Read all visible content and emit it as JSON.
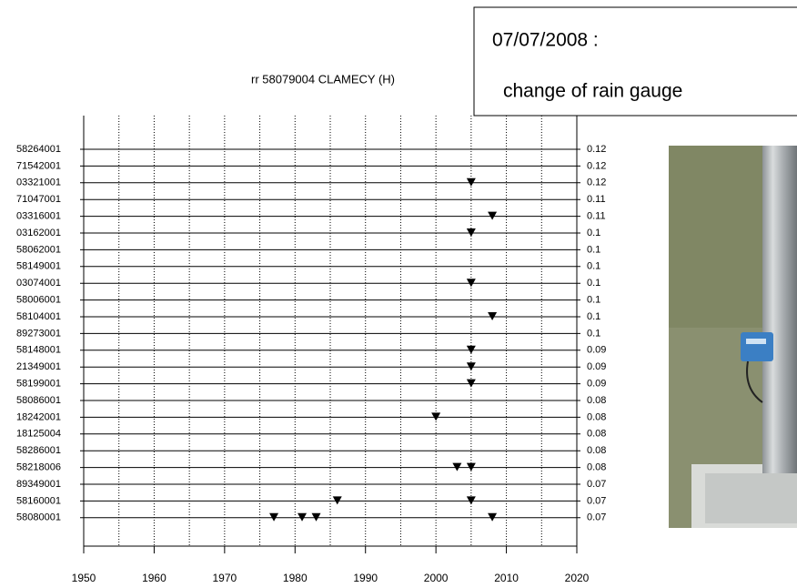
{
  "chart_data": {
    "type": "event-timeline",
    "title": "rr 58079004 CLAMECY (H)",
    "categories": [
      "58264001",
      "71542001",
      "03321001",
      "71047001",
      "03316001",
      "03162001",
      "58062001",
      "58149001",
      "03074001",
      "58006001",
      "58104001",
      "89273001",
      "58148001",
      "21349001",
      "58199001",
      "58086001",
      "18242001",
      "18125004",
      "58286001",
      "58218006",
      "89349001",
      "58160001",
      "58080001"
    ],
    "right_labels": [
      0.12,
      0.12,
      0.12,
      0.11,
      0.11,
      0.1,
      0.1,
      0.1,
      0.1,
      0.1,
      0.1,
      0.1,
      0.09,
      0.09,
      0.09,
      0.08,
      0.08,
      0.08,
      0.08,
      0.08,
      0.07,
      0.07,
      0.07
    ],
    "events": [
      [],
      [],
      [
        2005
      ],
      [],
      [
        2008
      ],
      [
        2005
      ],
      [],
      [],
      [
        2005
      ],
      [],
      [
        2008
      ],
      [],
      [
        2005
      ],
      [
        2005
      ],
      [
        2005
      ],
      [],
      [
        2000
      ],
      [],
      [],
      [
        2003,
        2005
      ],
      [],
      [
        1986,
        2005
      ],
      [
        1977,
        1981,
        1983,
        2008
      ]
    ],
    "marker_color": "#000000",
    "xlim": [
      1950,
      2020
    ],
    "xticks": [
      1950,
      1960,
      1970,
      1980,
      1990,
      2000,
      2010,
      2020
    ],
    "xgrid": [
      1955,
      1960,
      1965,
      1970,
      1975,
      1980,
      1985,
      1990,
      1995,
      2000,
      2005,
      2010,
      2015
    ],
    "annotation": [
      "07/07/2008 :",
      "change of rain gauge"
    ]
  }
}
